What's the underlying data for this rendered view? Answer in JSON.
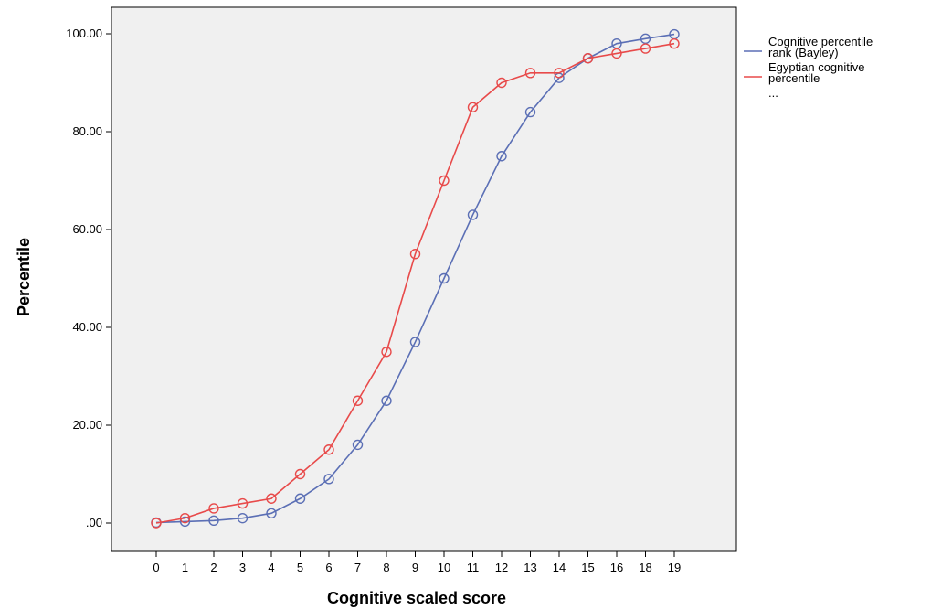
{
  "chart_data": {
    "type": "line",
    "xlabel": "Cognitive scaled score",
    "ylabel": "Percentile",
    "categories": [
      "0",
      "1",
      "2",
      "3",
      "4",
      "5",
      "6",
      "7",
      "8",
      "9",
      "10",
      "11",
      "12",
      "13",
      "14",
      "15",
      "16",
      "18",
      "19"
    ],
    "ylim": [
      0,
      100
    ],
    "yticks": [
      ".00",
      "20.00",
      "40.00",
      "60.00",
      "80.00",
      "100.00"
    ],
    "grid": false,
    "legend_position": "right",
    "series": [
      {
        "name": "Cognitive percentile rank (Bayley)",
        "color": "#5b6fb5",
        "values": [
          0.1,
          0.3,
          0.5,
          1,
          2,
          5,
          9,
          16,
          25,
          37,
          50,
          63,
          75,
          84,
          91,
          95,
          98,
          99,
          99.9
        ]
      },
      {
        "name": "Egyptian cognitive percentile",
        "color": "#e84a4a",
        "values": [
          0,
          1,
          3,
          4,
          5,
          10,
          15,
          25,
          35,
          55,
          70,
          85,
          90,
          92,
          92,
          95,
          96,
          97,
          98
        ]
      }
    ],
    "legend": {
      "entries": [
        "Cognitive percentile\nrank (Bayley)",
        "Egyptian cognitive\npercentile"
      ],
      "more": "..."
    },
    "colors": {
      "plot_background": "#f0f0f0",
      "frame": "#000000"
    }
  }
}
